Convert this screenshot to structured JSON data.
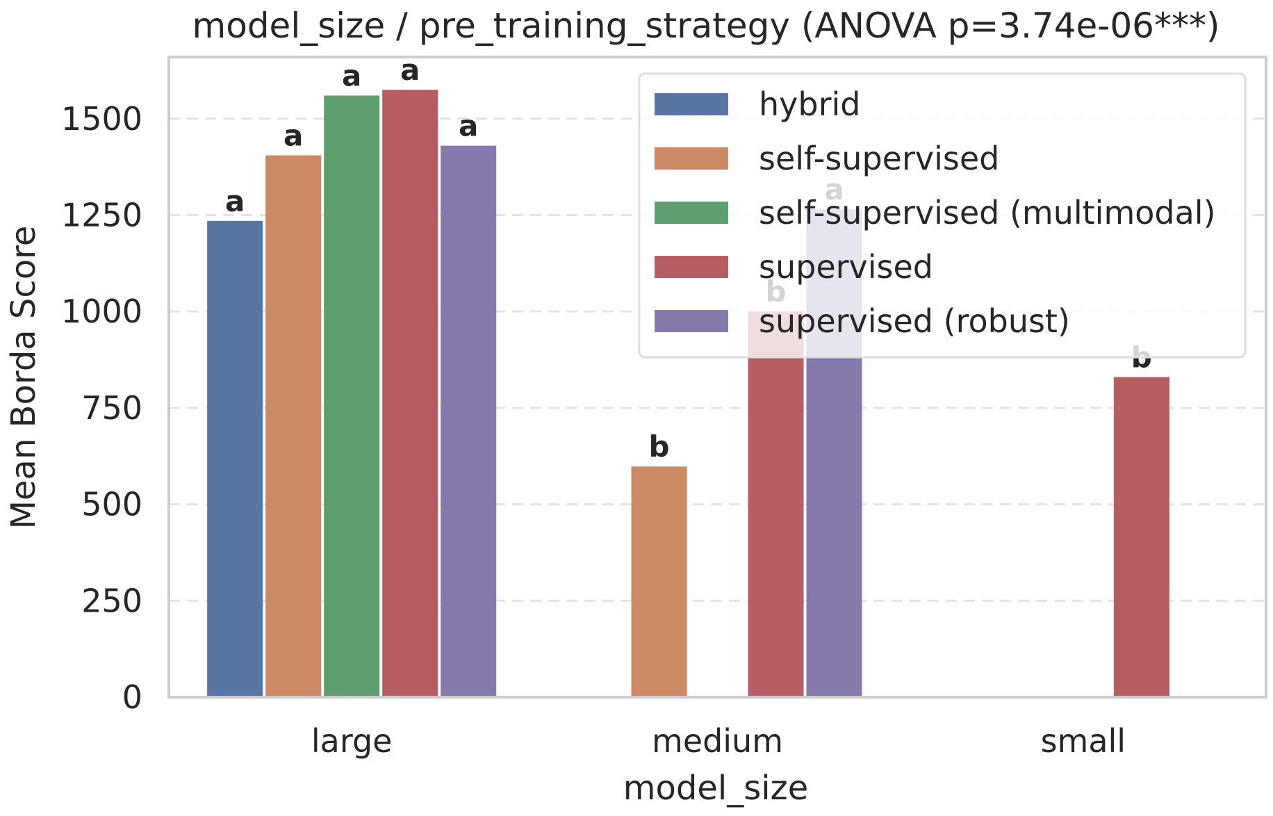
{
  "chart_data": {
    "type": "bar",
    "title": "model_size / pre_training_strategy  (ANOVA p=3.74e-06***)",
    "xlabel": "model_size",
    "ylabel": "Mean Borda Score",
    "categories": [
      "large",
      "medium",
      "small"
    ],
    "ylim": [
      0,
      1660
    ],
    "yticks": [
      0,
      250,
      500,
      750,
      1000,
      1250,
      1500
    ],
    "grid": true,
    "legend_position": "top-right",
    "series": [
      {
        "name": "hybrid",
        "color": "#5975a4",
        "values": [
          1235,
          null,
          null
        ],
        "labels": [
          "a",
          null,
          null
        ]
      },
      {
        "name": "self-supervised",
        "color": "#cc8963",
        "values": [
          1405,
          598,
          null
        ],
        "labels": [
          "a",
          "b",
          null
        ]
      },
      {
        "name": "self-supervised (multimodal)",
        "color": "#5f9e6e",
        "values": [
          1560,
          null,
          null
        ],
        "labels": [
          "a",
          null,
          null
        ]
      },
      {
        "name": "supervised",
        "color": "#b55d60",
        "values": [
          1575,
          1000,
          830
        ],
        "labels": [
          "a",
          "b",
          "b"
        ]
      },
      {
        "name": "supervised (robust)",
        "color": "#857aab",
        "values": [
          1430,
          1265,
          null
        ],
        "labels": [
          "a",
          "a",
          null
        ]
      }
    ]
  }
}
